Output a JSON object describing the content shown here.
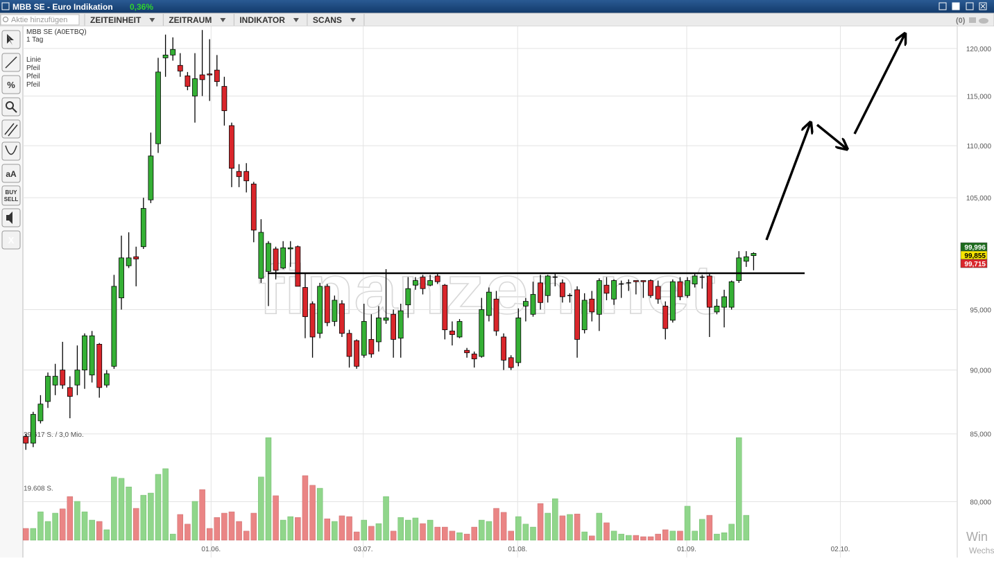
{
  "window": {
    "title": "MBB SE - Euro Indikation",
    "change": "0,36%"
  },
  "toolbar": {
    "search_placeholder": "Aktie hinzufügen",
    "menus": [
      "ZEITEINHEIT",
      "ZEITRAUM",
      "INDIKATOR",
      "SCANS"
    ],
    "count": "(0)"
  },
  "tools": {
    "percent": "%",
    "text": "aA",
    "buy": "BUY",
    "sell": "SELL",
    "close": "X"
  },
  "chart_data": {
    "type": "candlestick",
    "title": "MBB SE (A0ETBQ)",
    "subtitle": "1 Tag",
    "drawings": [
      "Linie",
      "Pfeil",
      "Pfeil",
      "Pfeil"
    ],
    "watermark": "finanzen.net",
    "os_notice": [
      "Win",
      "Wechs"
    ],
    "log_scale": true,
    "grid": true,
    "colors": {
      "up": "#35b035",
      "down": "#d9262b",
      "doji": "#000000",
      "volume_up": "#90d68b",
      "volume_down": "#ea8585"
    },
    "xlim": [
      -0.4,
      126.7
    ],
    "xticks": [
      {
        "value": 25.2,
        "label": "01.06."
      },
      {
        "value": 45.9,
        "label": "03.07."
      },
      {
        "value": 66.9,
        "label": "01.08."
      },
      {
        "value": 89.9,
        "label": "01.09."
      },
      {
        "value": 110.8,
        "label": "02.10."
      }
    ],
    "ylim": [
      76.1,
      122.4
    ],
    "yticks": [
      {
        "value": 120,
        "label": "120,000"
      },
      {
        "value": 115,
        "label": "115,000"
      },
      {
        "value": 110,
        "label": "110,000"
      },
      {
        "value": 105,
        "label": "105,000"
      },
      {
        "value": 95,
        "label": "95,000"
      },
      {
        "value": 90,
        "label": "90,000"
      },
      {
        "value": 85,
        "label": "85,000"
      },
      {
        "value": 80,
        "label": "80,000"
      }
    ],
    "price_markers": [
      {
        "value": 99.996,
        "label": "99,996",
        "color": "#1d6b1d"
      },
      {
        "value": 99.855,
        "label": "99,855",
        "color": "#f5e400"
      },
      {
        "value": 99.715,
        "label": "99,715",
        "color": "#d9262b"
      }
    ],
    "open": [
      84.8,
      84.3,
      86.0,
      87.5,
      88.8,
      90.0,
      88.6,
      88.8,
      90.0,
      89.6,
      92.1,
      88.8,
      90.3,
      96.0,
      98.8,
      99.6,
      100.5,
      104.8,
      110.2,
      119.0,
      119.3,
      118.2,
      117.1,
      115.0,
      117.2,
      117.3,
      117.7,
      116.0,
      112.0,
      107.5,
      107.5,
      106.3,
      97.7,
      98.3,
      100.3,
      98.6,
      100.3,
      100.5,
      96.9,
      95.5,
      93.0,
      97.0,
      94.0,
      95.5,
      93.0,
      92.4,
      91.2,
      92.5,
      92.3,
      94.1,
      94.6,
      92.6,
      95.4,
      97.1,
      97.8,
      97.1,
      97.9,
      97.1,
      93.2,
      92.7,
      91.6,
      91.3,
      91.1,
      94.5,
      95.9,
      92.7,
      91.0,
      90.6,
      95.3,
      94.6,
      97.3,
      96.2,
      97.8,
      97.3,
      96.2,
      96.7,
      93.3,
      95.9,
      94.6,
      97.1,
      95.9,
      97.2,
      97.3,
      97.5,
      97.5,
      97.5,
      97.0,
      95.3,
      94.1,
      97.4,
      96.2,
      97.2,
      97.8,
      97.9,
      94.8,
      95.2,
      95.2,
      97.5,
      99.2,
      99.7
    ],
    "high": [
      85.0,
      86.7,
      88.0,
      89.8,
      90.5,
      92.3,
      89.5,
      92.0,
      93.0,
      93.2,
      92.2,
      90.0,
      98.0,
      101.5,
      101.8,
      100.5,
      105.0,
      111.3,
      119.0,
      121.5,
      121.2,
      119.5,
      117.5,
      119.5,
      122.0,
      121.0,
      119.3,
      117.0,
      112.3,
      108.2,
      108.3,
      106.5,
      103.0,
      101.0,
      100.5,
      101.0,
      101.0,
      100.6,
      98.2,
      95.7,
      97.3,
      97.2,
      96.2,
      95.8,
      93.3,
      92.5,
      95.5,
      94.6,
      95.3,
      98.5,
      95.0,
      95.5,
      97.8,
      97.8,
      98.0,
      98.0,
      98.1,
      97.2,
      94.0,
      94.2,
      91.8,
      91.5,
      96.0,
      96.9,
      96.6,
      93.0,
      91.2,
      95.1,
      96.0,
      97.4,
      98.0,
      98.0,
      98.2,
      97.6,
      96.4,
      97.0,
      96.4,
      96.6,
      97.7,
      97.8,
      97.6,
      97.5,
      97.6,
      97.5,
      97.5,
      97.6,
      97.5,
      95.7,
      97.6,
      97.8,
      97.8,
      98.1,
      98.0,
      98.1,
      95.9,
      96.7,
      97.5,
      100.1,
      100.1,
      100.0
    ],
    "low": [
      83.8,
      84.0,
      85.8,
      87.0,
      88.0,
      88.5,
      86.2,
      88.0,
      88.5,
      89.0,
      87.8,
      88.6,
      90.1,
      95.0,
      98.6,
      97.0,
      100.3,
      104.5,
      109.3,
      117.0,
      118.7,
      117.0,
      115.6,
      112.3,
      115.0,
      114.5,
      116.0,
      112.0,
      106.0,
      106.0,
      105.5,
      100.9,
      97.3,
      95.3,
      97.6,
      98.5,
      98.7,
      97.0,
      92.6,
      91.0,
      92.6,
      93.6,
      93.6,
      92.7,
      90.2,
      90.1,
      91.0,
      91.0,
      91.5,
      93.8,
      91.0,
      91.0,
      94.3,
      96.7,
      96.3,
      97.0,
      97.2,
      92.5,
      92.0,
      92.6,
      91.0,
      90.2,
      91.0,
      94.0,
      92.8,
      90.0,
      90.0,
      90.3,
      94.0,
      94.4,
      95.0,
      95.6,
      97.0,
      95.6,
      95.6,
      91.0,
      93.0,
      94.0,
      93.2,
      95.8,
      95.4,
      96.0,
      96.6,
      96.3,
      96.0,
      96.0,
      95.5,
      92.5,
      93.9,
      95.8,
      96.0,
      96.9,
      96.8,
      92.7,
      94.6,
      93.5,
      95.0,
      97.3,
      98.7,
      98.4
    ],
    "close": [
      84.3,
      86.5,
      87.3,
      89.5,
      89.5,
      88.8,
      87.9,
      90.0,
      92.8,
      92.8,
      88.6,
      89.7,
      97.0,
      99.5,
      99.5,
      99.4,
      104.0,
      109.0,
      117.5,
      119.3,
      119.9,
      117.6,
      116.0,
      116.8,
      116.7,
      117.2,
      116.5,
      113.5,
      107.8,
      107.0,
      106.6,
      102.0,
      101.8,
      100.8,
      98.4,
      100.4,
      100.4,
      97.0,
      94.4,
      92.7,
      97.0,
      93.9,
      95.8,
      93.0,
      91.1,
      90.3,
      94.0,
      91.3,
      94.3,
      94.3,
      92.5,
      94.9,
      96.8,
      97.5,
      96.8,
      97.5,
      97.4,
      93.3,
      92.9,
      94.0,
      91.4,
      90.9,
      95.0,
      96.5,
      93.2,
      90.8,
      90.2,
      94.3,
      95.7,
      96.3,
      95.6,
      97.9,
      97.8,
      96.1,
      96.2,
      92.5,
      95.8,
      94.8,
      97.5,
      96.4,
      97.5,
      97.2,
      97.3,
      97.4,
      97.4,
      96.2,
      95.9,
      93.4,
      97.4,
      96.1,
      97.5,
      97.9,
      97.8,
      95.2,
      95.3,
      96.1,
      97.4,
      99.5,
      99.6,
      99.9
    ],
    "volume": [
      4400,
      4400,
      10600,
      7000,
      10100,
      11700,
      16300,
      14500,
      10600,
      7500,
      7000,
      3900,
      23600,
      23100,
      19900,
      11900,
      16800,
      17600,
      24600,
      26700,
      2300,
      9600,
      6000,
      14500,
      18900,
      4400,
      8500,
      10100,
      10600,
      7000,
      3400,
      10100,
      23600,
      38300,
      16600,
      7500,
      8800,
      8500,
      24100,
      20500,
      19400,
      8000,
      7000,
      9100,
      8800,
      3100,
      7500,
      5200,
      6200,
      16300,
      3400,
      8500,
      7500,
      8300,
      6200,
      7500,
      4900,
      4900,
      3400,
      2800,
      2300,
      4900,
      7500,
      7000,
      11900,
      10400,
      3400,
      8800,
      6000,
      4900,
      13700,
      10100,
      15500,
      9100,
      9600,
      9800,
      3100,
      1600,
      10100,
      6500,
      3400,
      2300,
      1800,
      1800,
      1300,
      1300,
      2300,
      3900,
      3400,
      3400,
      12700,
      3400,
      7800,
      9300,
      2300,
      2800,
      6000,
      38300,
      9300,
      null
    ],
    "vlim": [
      0,
      39617
    ],
    "vticks": [
      {
        "value": 39617,
        "label": "39.617 S. / 3,0 Mio."
      },
      {
        "value": 19608,
        "label": "19.608 S."
      }
    ]
  }
}
